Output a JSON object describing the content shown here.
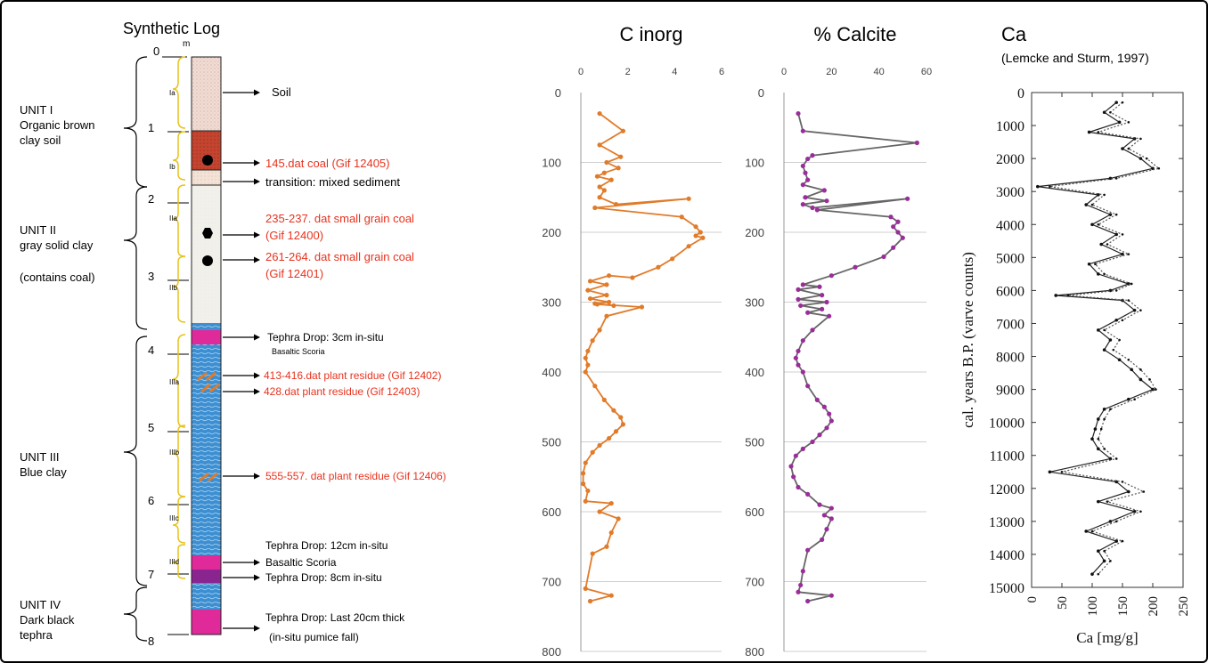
{
  "log": {
    "title": "Synthetic Log",
    "unit_m": "m",
    "depth_ticks": [
      "0",
      "1",
      "2",
      "3",
      "4",
      "5",
      "6",
      "7",
      "8"
    ],
    "units": [
      {
        "name": "UNIT I",
        "desc": [
          "Organic brown",
          "clay soil"
        ]
      },
      {
        "name": "UNIT II",
        "desc": [
          "gray solid clay",
          "",
          "(contains coal)"
        ]
      },
      {
        "name": "UNIT III",
        "desc": [
          "Blue clay"
        ]
      },
      {
        "name": "UNIT IV",
        "desc": [
          "Dark black",
          "tephra"
        ]
      }
    ],
    "subunits": [
      "Ia",
      "Ib",
      "IIa",
      "IIb",
      "IIIa",
      "IIIb",
      "IIIc",
      "IIId"
    ],
    "annotations": [
      {
        "text": "Soil",
        "color": "#000000"
      },
      {
        "text": "145.dat coal (Gif 12405)",
        "color": "#e8321e"
      },
      {
        "text": "transition: mixed sediment",
        "color": "#000000"
      },
      {
        "text": "235-237. dat small grain coal",
        "color": "#e8321e"
      },
      {
        "text": "(Gif 12400)",
        "color": "#e8321e"
      },
      {
        "text": "261-264. dat small grain coal",
        "color": "#e8321e"
      },
      {
        "text": "(Gif 12401)",
        "color": "#e8321e"
      },
      {
        "text": "Tephra Drop: 3cm in-situ",
        "color": "#000000"
      },
      {
        "text": "Basaltic Scoria",
        "color": "#000000"
      },
      {
        "text": "413-416.dat plant residue (Gif 12402)",
        "color": "#e8321e"
      },
      {
        "text": "428.dat plant residue (Gif 12403)",
        "color": "#e8321e"
      },
      {
        "text": "555-557. dat plant residue (Gif 12406)",
        "color": "#e8321e"
      },
      {
        "text": "Tephra Drop: 12cm in-situ",
        "color": "#000000"
      },
      {
        "text": "Basaltic Scoria",
        "color": "#000000"
      },
      {
        "text": "Tephra Drop: 8cm in-situ",
        "color": "#000000"
      },
      {
        "text": "Tephra Drop: Last 20cm thick",
        "color": "#000000"
      },
      {
        "text": "(in-situ pumice fall)",
        "color": "#000000"
      }
    ]
  },
  "chart_data": [
    {
      "type": "line",
      "title": "C inorg",
      "xlim": [
        0,
        6
      ],
      "ylim": [
        0,
        800
      ],
      "y_inverted": true,
      "x_ticks": [
        0,
        2,
        4,
        6
      ],
      "y_ticks": [
        0,
        100,
        200,
        300,
        400,
        500,
        600,
        700,
        800
      ],
      "color": "#e07b2a",
      "series": [
        {
          "x": [
            0.8,
            1.8,
            0.8,
            1.7,
            1.1,
            1.6,
            1.0,
            0.7,
            1.3,
            0.8,
            1.0,
            0.8,
            1.5,
            4.6,
            0.6,
            4.3,
            4.9,
            5.1,
            4.9,
            5.2,
            4.6,
            3.9,
            3.3,
            2.2,
            1.2,
            0.4,
            1.1,
            0.3,
            1.1,
            0.4,
            1.2,
            0.6,
            1.4,
            0.7,
            2.6,
            1.1,
            0.8,
            0.5,
            0.3,
            0.2,
            0.3,
            0.2,
            0.6,
            1.0,
            1.4,
            1.7,
            1.8,
            1.5,
            1.2,
            0.8,
            0.5,
            0.2,
            0.1,
            0.1,
            0.3,
            0.2,
            1.3,
            0.8,
            1.6,
            1.3,
            1.1,
            0.5,
            0.2,
            1.3,
            0.4
          ],
          "y": [
            30,
            55,
            75,
            92,
            100,
            108,
            115,
            120,
            125,
            135,
            140,
            150,
            160,
            152,
            165,
            178,
            192,
            200,
            205,
            208,
            220,
            238,
            250,
            265,
            262,
            270,
            275,
            283,
            290,
            295,
            300,
            302,
            305,
            303,
            307,
            320,
            340,
            355,
            370,
            380,
            390,
            400,
            420,
            440,
            455,
            465,
            475,
            485,
            495,
            505,
            515,
            530,
            545,
            560,
            570,
            585,
            588,
            600,
            610,
            630,
            650,
            660,
            710,
            720,
            728
          ]
        }
      ]
    },
    {
      "type": "line",
      "title": "% Calcite",
      "xlim": [
        0,
        60
      ],
      "ylim": [
        0,
        800
      ],
      "y_inverted": true,
      "x_ticks": [
        0,
        20,
        40,
        60
      ],
      "y_ticks": [
        0,
        100,
        200,
        300,
        400,
        500,
        600,
        700,
        800
      ],
      "color": "#666666",
      "marker_color": "#9b2d9b",
      "series": [
        {
          "x": [
            6,
            8,
            56,
            12,
            10,
            8,
            9,
            10,
            8,
            17,
            9,
            18,
            8,
            12,
            52,
            14,
            45,
            48,
            46,
            48,
            50,
            46,
            42,
            30,
            20,
            8,
            15,
            6,
            16,
            6,
            18,
            7,
            16,
            10,
            19,
            12,
            8,
            6,
            5,
            6,
            8,
            10,
            14,
            17,
            19,
            20,
            18,
            15,
            12,
            8,
            5,
            3,
            4,
            6,
            10,
            15,
            20,
            17,
            20,
            18,
            16,
            10,
            8,
            7,
            6,
            20,
            10
          ],
          "y": [
            30,
            55,
            72,
            90,
            95,
            105,
            115,
            125,
            132,
            140,
            150,
            155,
            160,
            165,
            152,
            168,
            178,
            185,
            192,
            200,
            208,
            222,
            235,
            250,
            262,
            275,
            278,
            282,
            290,
            296,
            300,
            305,
            310,
            315,
            320,
            340,
            355,
            370,
            380,
            390,
            400,
            420,
            440,
            450,
            460,
            470,
            480,
            490,
            500,
            510,
            520,
            535,
            550,
            565,
            575,
            590,
            595,
            605,
            610,
            625,
            640,
            655,
            685,
            705,
            715,
            720,
            728
          ]
        }
      ]
    },
    {
      "type": "line",
      "title": "Ca",
      "subtitle": "(Lemcke and Sturm, 1997)",
      "xlabel": "Ca [mg/g]",
      "ylabel": "cal. years B.P. (varve counts)",
      "xlim": [
        0,
        250
      ],
      "ylim": [
        0,
        15000
      ],
      "y_inverted": true,
      "x_ticks": [
        0,
        50,
        100,
        150,
        200,
        250
      ],
      "y_ticks": [
        0,
        1000,
        2000,
        3000,
        4000,
        5000,
        6000,
        7000,
        8000,
        9000,
        10000,
        11000,
        12000,
        13000,
        14000,
        15000
      ],
      "series": [
        {
          "style": "solid",
          "x": [
            140,
            120,
            145,
            95,
            170,
            150,
            180,
            200,
            130,
            10,
            110,
            90,
            130,
            100,
            140,
            115,
            150,
            95,
            110,
            160,
            130,
            40,
            150,
            170,
            140,
            110,
            130,
            120,
            145,
            165,
            180,
            200,
            160,
            120,
            110,
            105,
            100,
            110,
            130,
            30,
            140,
            160,
            110,
            170,
            130,
            90,
            140,
            110,
            120,
            100
          ],
          "y": [
            300,
            600,
            900,
            1200,
            1400,
            1700,
            2000,
            2300,
            2600,
            2850,
            3100,
            3400,
            3700,
            4000,
            4300,
            4600,
            4900,
            5200,
            5500,
            5800,
            6000,
            6150,
            6300,
            6600,
            6900,
            7200,
            7500,
            7800,
            8100,
            8400,
            8700,
            9000,
            9300,
            9600,
            9900,
            10200,
            10500,
            10800,
            11100,
            11500,
            11800,
            12100,
            12400,
            12700,
            13000,
            13300,
            13600,
            13900,
            14200,
            14600
          ]
        },
        {
          "style": "dotted",
          "x": [
            150,
            130,
            160,
            110,
            180,
            160,
            190,
            210,
            140,
            30,
            120,
            100,
            140,
            110,
            150,
            125,
            160,
            105,
            120,
            165,
            140,
            60,
            160,
            180,
            150,
            120,
            145,
            135,
            160,
            180,
            195,
            205,
            170,
            130,
            120,
            115,
            110,
            120,
            140,
            50,
            150,
            185,
            125,
            180,
            140,
            100,
            150,
            120,
            130,
            110
          ],
          "y": [
            300,
            600,
            900,
            1200,
            1400,
            1700,
            2000,
            2300,
            2600,
            2850,
            3100,
            3400,
            3700,
            4000,
            4300,
            4600,
            4900,
            5200,
            5500,
            5800,
            6000,
            6150,
            6300,
            6600,
            6900,
            7200,
            7500,
            7800,
            8100,
            8400,
            8700,
            9000,
            9300,
            9600,
            9900,
            10200,
            10500,
            10800,
            11100,
            11500,
            11800,
            12100,
            12400,
            12700,
            13000,
            13300,
            13600,
            13900,
            14200,
            14600
          ]
        }
      ]
    }
  ]
}
